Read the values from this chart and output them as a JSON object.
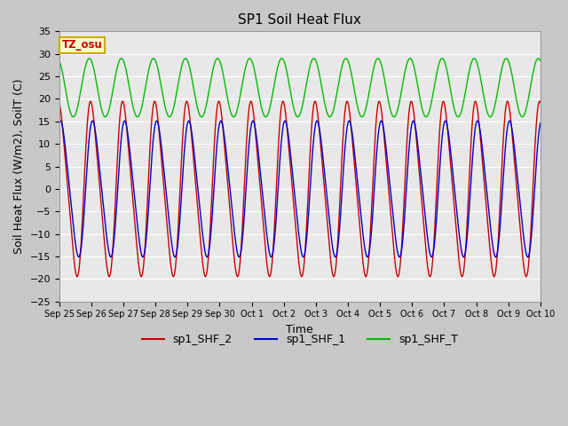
{
  "title": "SP1 Soil Heat Flux",
  "ylabel": "Soil Heat Flux (W/m2), SoilT (C)",
  "xlabel": "Time",
  "ylim": [
    -25,
    35
  ],
  "yticks": [
    -25,
    -20,
    -15,
    -10,
    -5,
    0,
    5,
    10,
    15,
    20,
    25,
    30,
    35
  ],
  "xtick_labels": [
    "Sep 25",
    "Sep 26",
    "Sep 27",
    "Sep 28",
    "Sep 29",
    "Sep 30",
    "Oct 1",
    "Oct 2",
    "Oct 3",
    "Oct 4",
    "Oct 5",
    "Oct 6",
    "Oct 7",
    "Oct 8",
    "Oct 9",
    "Oct 10"
  ],
  "num_days": 15,
  "color_red": "#cc0000",
  "color_blue": "#0000cc",
  "color_green": "#00bb00",
  "fig_bg_color": "#c8c8c8",
  "plot_bg_color": "#e8e8e8",
  "label_box_bg": "#ffffcc",
  "label_box_edge": "#ccaa00",
  "label_box_text": "#cc0000",
  "legend_labels": [
    "sp1_SHF_2",
    "sp1_SHF_1",
    "sp1_SHF_T"
  ],
  "tz_label": "TZ_osu",
  "title_fontsize": 11,
  "axis_fontsize": 9,
  "legend_fontsize": 9,
  "grid_color": "#ffffff",
  "tick_fontsize": 8
}
